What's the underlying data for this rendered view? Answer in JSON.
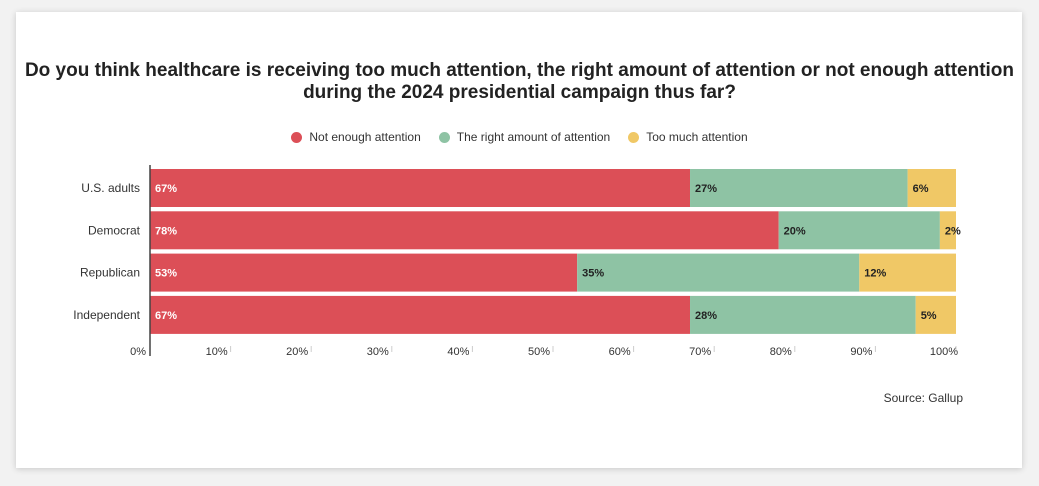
{
  "chart_data": {
    "type": "bar",
    "orientation": "horizontal",
    "stacked": true,
    "title": "Do you think healthcare is receiving too much attention, the right amount of attention or not enough attention during the 2024 presidential campaign thus far?",
    "categories": [
      "U.S. adults",
      "Democrat",
      "Republican",
      "Independent"
    ],
    "series": [
      {
        "name": "Not enough attention",
        "values": [
          67,
          78,
          53,
          67
        ],
        "color": "#dc4f57",
        "label_color": "#ffffff"
      },
      {
        "name": "The right amount of attention",
        "values": [
          27,
          20,
          35,
          28
        ],
        "color": "#8ec3a4",
        "label_color": "#222222"
      },
      {
        "name": "Too much attention",
        "values": [
          6,
          2,
          12,
          5
        ],
        "color": "#f0c866",
        "label_color": "#222222"
      }
    ],
    "data_labels": [
      [
        "67%",
        "78%",
        "53%",
        "67%"
      ],
      [
        "27%",
        "20%",
        "35%",
        "28%"
      ],
      [
        "6%",
        "2%",
        "12%",
        "5%"
      ]
    ],
    "xlim": [
      0,
      100
    ],
    "xticks": [
      "0%",
      "10%",
      "20%",
      "30%",
      "40%",
      "50%",
      "60%",
      "70%",
      "80%",
      "90%",
      "100%"
    ],
    "legend_position": "top",
    "grid": false,
    "source": "Source: Gallup"
  }
}
